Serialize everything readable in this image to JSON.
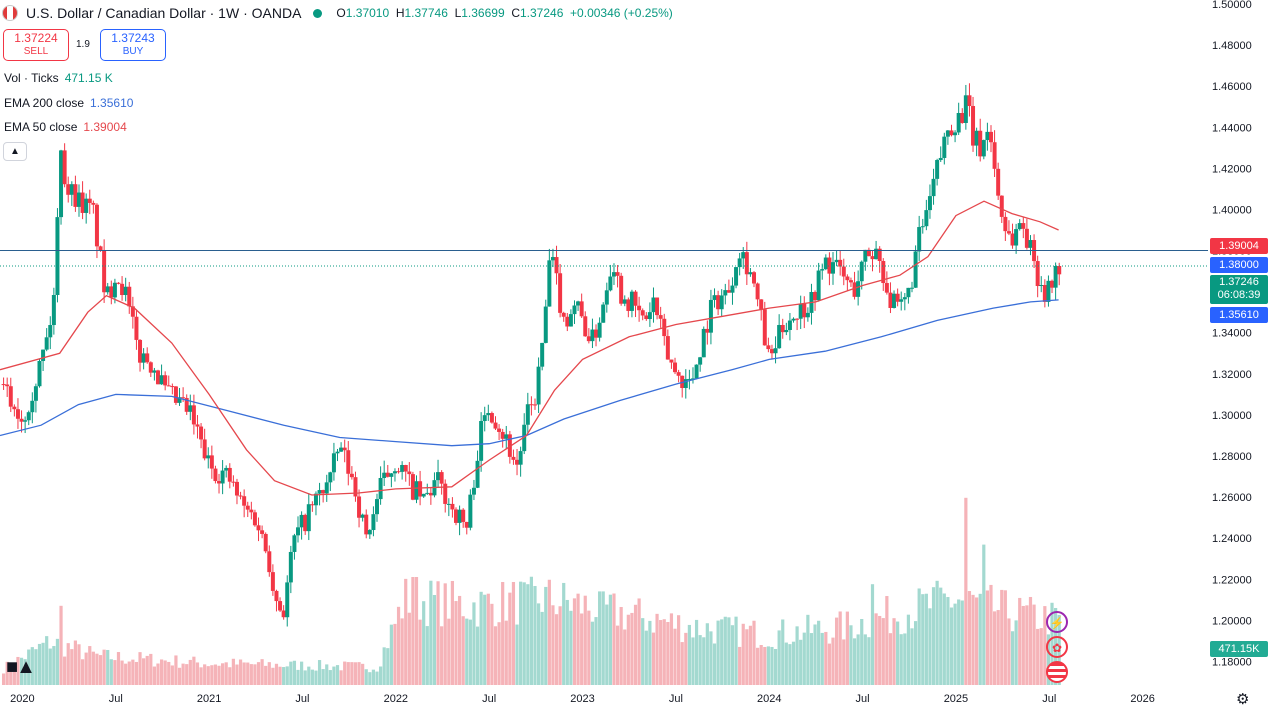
{
  "header": {
    "symbol_title": "U.S. Dollar / Canadian Dollar · 1W · OANDA",
    "open_label": "O",
    "open": "1.37010",
    "high_label": "H",
    "high": "1.37746",
    "low_label": "L",
    "low": "1.36699",
    "close_label": "C",
    "close": "1.37246",
    "change": "+0.00346 (+0.25%)"
  },
  "trade": {
    "sell_price": "1.37224",
    "sell_label": "SELL",
    "spread": "1.9",
    "buy_price": "1.37243",
    "buy_label": "BUY"
  },
  "legend": {
    "vol_label": "Vol · Ticks",
    "vol_value": "471.15 K",
    "ema200_label": "EMA 200 close",
    "ema200_value": "1.35610",
    "ema50_label": "EMA 50 close",
    "ema50_value": "1.39004"
  },
  "price_tags": {
    "ema50": "1.39004",
    "level": "1.38000",
    "last": "1.37246",
    "countdown": "06:08:39",
    "ema200": "1.35610",
    "volume": "471.15K"
  },
  "colors": {
    "up": "#089981",
    "down": "#f23645",
    "vol_up": "#a3d9d0",
    "vol_down": "#f5b3b8",
    "ema50": "#e5484d",
    "ema200": "#3a6fd8",
    "level": "#2a5f8f"
  },
  "icons": [
    "tradingview-logo-icon",
    "lightning-icon",
    "canada-flag-icon",
    "us-flag-icon",
    "settings-gear-icon"
  ],
  "chart_data": {
    "type": "candlestick",
    "timeframe": "1W",
    "ylim": [
      1.17,
      1.5
    ],
    "yticks": [
      "1.50000",
      "1.48000",
      "1.46000",
      "1.44000",
      "1.42000",
      "1.40000",
      "1.38000",
      "1.36000",
      "1.34000",
      "1.32000",
      "1.30000",
      "1.28000",
      "1.26000",
      "1.24000",
      "1.22000",
      "1.20000",
      "1.18000"
    ],
    "xticks": [
      {
        "label": "2020",
        "t": 2020.0
      },
      {
        "label": "Jul",
        "t": 2020.5
      },
      {
        "label": "2021",
        "t": 2021.0
      },
      {
        "label": "Jul",
        "t": 2021.5
      },
      {
        "label": "2022",
        "t": 2022.0
      },
      {
        "label": "Jul",
        "t": 2022.5
      },
      {
        "label": "2023",
        "t": 2023.0
      },
      {
        "label": "Jul",
        "t": 2023.5
      },
      {
        "label": "2024",
        "t": 2024.0
      },
      {
        "label": "Jul",
        "t": 2024.5
      },
      {
        "label": "2025",
        "t": 2025.0
      },
      {
        "label": "Jul",
        "t": 2025.5
      },
      {
        "label": "2026",
        "t": 2026.0
      }
    ],
    "xlim": [
      2019.88,
      2026.35
    ],
    "horizontal_line": 1.38,
    "close_path": [
      [
        2019.88,
        1.315
      ],
      [
        2019.95,
        1.305
      ],
      [
        2020.0,
        1.298
      ],
      [
        2020.08,
        1.32
      ],
      [
        2020.14,
        1.34
      ],
      [
        2020.18,
        1.365
      ],
      [
        2020.2,
        1.44
      ],
      [
        2020.23,
        1.412
      ],
      [
        2020.3,
        1.405
      ],
      [
        2020.38,
        1.398
      ],
      [
        2020.45,
        1.355
      ],
      [
        2020.5,
        1.37
      ],
      [
        2020.55,
        1.36
      ],
      [
        2020.62,
        1.33
      ],
      [
        2020.7,
        1.325
      ],
      [
        2020.77,
        1.31
      ],
      [
        2020.85,
        1.305
      ],
      [
        2020.9,
        1.3
      ],
      [
        2021.0,
        1.275
      ],
      [
        2021.1,
        1.27
      ],
      [
        2021.18,
        1.255
      ],
      [
        2021.25,
        1.25
      ],
      [
        2021.32,
        1.23
      ],
      [
        2021.36,
        1.21
      ],
      [
        2021.4,
        1.205
      ],
      [
        2021.45,
        1.238
      ],
      [
        2021.55,
        1.255
      ],
      [
        2021.65,
        1.27
      ],
      [
        2021.7,
        1.285
      ],
      [
        2021.78,
        1.265
      ],
      [
        2021.84,
        1.24
      ],
      [
        2021.92,
        1.265
      ],
      [
        2022.0,
        1.278
      ],
      [
        2022.08,
        1.265
      ],
      [
        2022.15,
        1.258
      ],
      [
        2022.22,
        1.268
      ],
      [
        2022.3,
        1.255
      ],
      [
        2022.38,
        1.245
      ],
      [
        2022.45,
        1.29
      ],
      [
        2022.5,
        1.305
      ],
      [
        2022.58,
        1.29
      ],
      [
        2022.65,
        1.275
      ],
      [
        2022.7,
        1.298
      ],
      [
        2022.75,
        1.31
      ],
      [
        2022.8,
        1.345
      ],
      [
        2022.82,
        1.375
      ],
      [
        2022.85,
        1.37
      ],
      [
        2022.9,
        1.345
      ],
      [
        2022.96,
        1.355
      ],
      [
        2023.05,
        1.335
      ],
      [
        2023.1,
        1.35
      ],
      [
        2023.16,
        1.378
      ],
      [
        2023.2,
        1.36
      ],
      [
        2023.26,
        1.355
      ],
      [
        2023.33,
        1.345
      ],
      [
        2023.38,
        1.355
      ],
      [
        2023.45,
        1.33
      ],
      [
        2023.5,
        1.32
      ],
      [
        2023.58,
        1.315
      ],
      [
        2023.65,
        1.34
      ],
      [
        2023.7,
        1.355
      ],
      [
        2023.78,
        1.36
      ],
      [
        2023.84,
        1.382
      ],
      [
        2023.9,
        1.37
      ],
      [
        2023.96,
        1.345
      ],
      [
        2024.0,
        1.325
      ],
      [
        2024.08,
        1.345
      ],
      [
        2024.15,
        1.35
      ],
      [
        2024.22,
        1.355
      ],
      [
        2024.3,
        1.375
      ],
      [
        2024.38,
        1.37
      ],
      [
        2024.45,
        1.36
      ],
      [
        2024.52,
        1.378
      ],
      [
        2024.58,
        1.38
      ],
      [
        2024.65,
        1.355
      ],
      [
        2024.7,
        1.35
      ],
      [
        2024.75,
        1.36
      ],
      [
        2024.8,
        1.385
      ],
      [
        2024.85,
        1.4
      ],
      [
        2024.9,
        1.42
      ],
      [
        2024.96,
        1.44
      ],
      [
        2025.02,
        1.445
      ],
      [
        2025.06,
        1.452
      ],
      [
        2025.09,
        1.435
      ],
      [
        2025.13,
        1.43
      ],
      [
        2025.18,
        1.44
      ],
      [
        2025.22,
        1.41
      ],
      [
        2025.26,
        1.392
      ],
      [
        2025.3,
        1.385
      ],
      [
        2025.35,
        1.395
      ],
      [
        2025.4,
        1.38
      ],
      [
        2025.45,
        1.365
      ],
      [
        2025.49,
        1.358
      ],
      [
        2025.52,
        1.367
      ],
      [
        2025.55,
        1.372
      ]
    ],
    "ema50_path": [
      [
        2019.88,
        1.322
      ],
      [
        2020.2,
        1.33
      ],
      [
        2020.35,
        1.35
      ],
      [
        2020.45,
        1.358
      ],
      [
        2020.6,
        1.352
      ],
      [
        2020.8,
        1.335
      ],
      [
        2021.0,
        1.31
      ],
      [
        2021.2,
        1.283
      ],
      [
        2021.35,
        1.268
      ],
      [
        2021.55,
        1.261
      ],
      [
        2021.8,
        1.262
      ],
      [
        2022.0,
        1.264
      ],
      [
        2022.3,
        1.265
      ],
      [
        2022.5,
        1.278
      ],
      [
        2022.7,
        1.29
      ],
      [
        2022.85,
        1.312
      ],
      [
        2023.0,
        1.327
      ],
      [
        2023.25,
        1.338
      ],
      [
        2023.5,
        1.344
      ],
      [
        2023.75,
        1.348
      ],
      [
        2024.0,
        1.352
      ],
      [
        2024.25,
        1.355
      ],
      [
        2024.5,
        1.363
      ],
      [
        2024.7,
        1.368
      ],
      [
        2024.85,
        1.377
      ],
      [
        2025.0,
        1.397
      ],
      [
        2025.15,
        1.404
      ],
      [
        2025.3,
        1.398
      ],
      [
        2025.45,
        1.394
      ],
      [
        2025.55,
        1.39
      ]
    ],
    "ema200_path": [
      [
        2019.88,
        1.29
      ],
      [
        2020.1,
        1.295
      ],
      [
        2020.3,
        1.305
      ],
      [
        2020.5,
        1.31
      ],
      [
        2020.8,
        1.309
      ],
      [
        2021.1,
        1.302
      ],
      [
        2021.4,
        1.295
      ],
      [
        2021.7,
        1.289
      ],
      [
        2022.0,
        1.287
      ],
      [
        2022.3,
        1.285
      ],
      [
        2022.5,
        1.286
      ],
      [
        2022.7,
        1.29
      ],
      [
        2022.9,
        1.298
      ],
      [
        2023.2,
        1.307
      ],
      [
        2023.5,
        1.315
      ],
      [
        2023.8,
        1.322
      ],
      [
        2024.0,
        1.327
      ],
      [
        2024.3,
        1.331
      ],
      [
        2024.6,
        1.338
      ],
      [
        2024.9,
        1.346
      ],
      [
        2025.2,
        1.352
      ],
      [
        2025.4,
        1.355
      ],
      [
        2025.55,
        1.356
      ]
    ],
    "volume_spikes": [
      [
        2020.2,
        0.22
      ],
      [
        2022.1,
        0.3
      ],
      [
        2022.7,
        0.28
      ],
      [
        2023.1,
        0.26
      ],
      [
        2024.55,
        0.28
      ],
      [
        2025.05,
        0.52
      ],
      [
        2025.15,
        0.39
      ]
    ],
    "volume_baseline": [
      [
        2019.88,
        0.04
      ],
      [
        2020.15,
        0.12
      ],
      [
        2020.4,
        0.08
      ],
      [
        2021.0,
        0.06
      ],
      [
        2021.9,
        0.05
      ],
      [
        2022.05,
        0.24
      ],
      [
        2022.4,
        0.22
      ],
      [
        2022.8,
        0.24
      ],
      [
        2023.2,
        0.2
      ],
      [
        2023.6,
        0.16
      ],
      [
        2024.0,
        0.14
      ],
      [
        2024.4,
        0.16
      ],
      [
        2024.7,
        0.2
      ],
      [
        2025.0,
        0.24
      ],
      [
        2025.3,
        0.2
      ],
      [
        2025.55,
        0.18
      ]
    ]
  }
}
